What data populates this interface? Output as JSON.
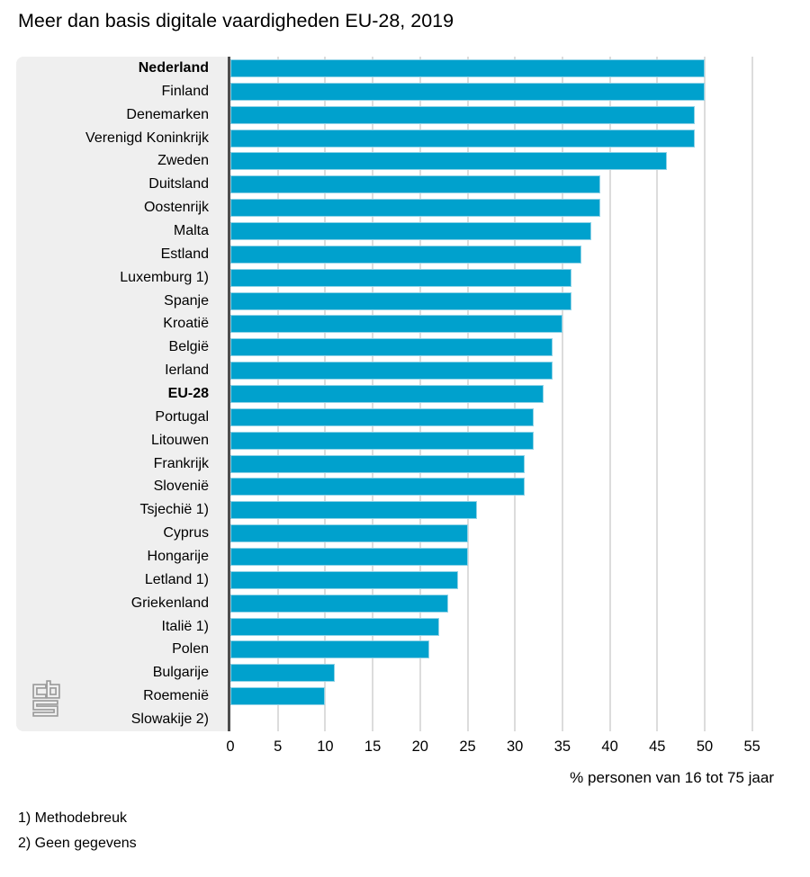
{
  "title": "Meer dan basis digitale vaardigheden EU-28, 2019",
  "chart_data": {
    "type": "bar",
    "orientation": "horizontal",
    "title": "Meer dan basis digitale vaardigheden EU-28, 2019",
    "xlabel": "% personen van 16 tot 75 jaar",
    "xlim": [
      0,
      57.5
    ],
    "xticks": [
      0,
      5,
      10,
      15,
      20,
      25,
      30,
      35,
      40,
      45,
      50,
      55
    ],
    "grid": true,
    "legend": "none",
    "bar_color": "#00a1cd",
    "categories": [
      "Nederland",
      "Finland",
      "Denemarken",
      "Verenigd Koninkrijk",
      "Zweden",
      "Duitsland",
      "Oostenrijk",
      "Malta",
      "Estland",
      "Luxemburg 1)",
      "Spanje",
      "Kroatië",
      "België",
      "Ierland",
      "EU-28",
      "Portugal",
      "Litouwen",
      "Frankrijk",
      "Slovenië",
      "Tsjechië 1)",
      "Cyprus",
      "Hongarije",
      "Letland 1)",
      "Griekenland",
      "Italië 1)",
      "Polen",
      "Bulgarije",
      "Roemenië",
      "Slowakije 2)"
    ],
    "values": [
      50,
      50,
      49,
      49,
      46,
      39,
      39,
      38,
      37,
      36,
      36,
      35,
      34,
      34,
      33,
      32,
      32,
      31,
      31,
      26,
      25,
      25,
      24,
      23,
      22,
      21,
      11,
      10,
      null
    ],
    "bold_categories": [
      "Nederland",
      "EU-28"
    ],
    "no_data_note": "Slowakije 2) heeft geen balk (geen gegevens)"
  },
  "footnotes": [
    "1) Methodebreuk",
    "2) Geen gegevens"
  ],
  "branding": {
    "logo": "cbs-logo"
  }
}
